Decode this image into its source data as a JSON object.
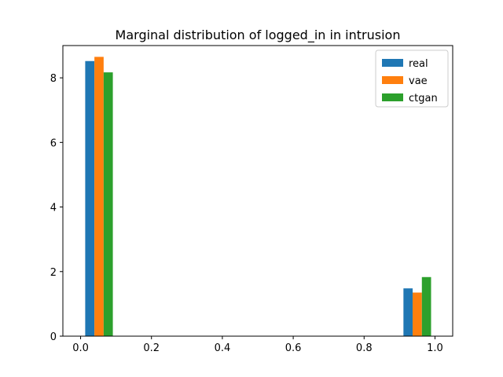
{
  "chart_data": {
    "type": "bar",
    "title": "Marginal distribution of logged_in in intrusion",
    "xlabel": "",
    "ylabel": "",
    "xlim": [
      -0.05,
      1.05
    ],
    "ylim": [
      0,
      9.0
    ],
    "xticks": [
      0.0,
      0.2,
      0.4,
      0.6,
      0.8,
      1.0
    ],
    "xtick_labels": [
      "0.0",
      "0.2",
      "0.4",
      "0.6",
      "0.8",
      "1.0"
    ],
    "yticks": [
      0,
      2,
      4,
      6,
      8
    ],
    "ytick_labels": [
      "0",
      "2",
      "4",
      "6",
      "8"
    ],
    "bar_width": 0.026,
    "categories": [
      "0",
      "1"
    ],
    "series": [
      {
        "name": "real",
        "color": "#1f77b4",
        "bars": [
          {
            "x": 0.026,
            "value": 8.52
          },
          {
            "x": 0.924,
            "value": 1.48
          }
        ]
      },
      {
        "name": "vae",
        "color": "#ff7f0e",
        "bars": [
          {
            "x": 0.052,
            "value": 8.65
          },
          {
            "x": 0.95,
            "value": 1.35
          }
        ]
      },
      {
        "name": "ctgan",
        "color": "#2ca02c",
        "bars": [
          {
            "x": 0.078,
            "value": 8.17
          },
          {
            "x": 0.976,
            "value": 1.83
          }
        ]
      }
    ],
    "legend_position": "top-right",
    "grid": false
  }
}
